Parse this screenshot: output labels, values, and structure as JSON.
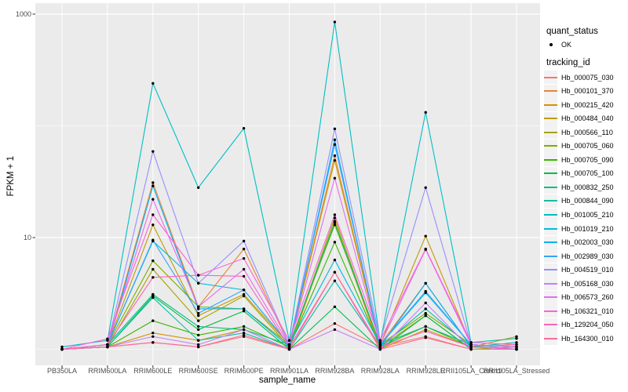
{
  "figure": {
    "background": "#FFFFFF",
    "panel_background": "#EBEBEB",
    "grid_color": "#FFFFFF",
    "point_color": "#000000",
    "axis_text_color": "#4D4D4D",
    "tick_mark_color": "#333333",
    "legend_key_background": "#F2F2F2"
  },
  "chart_data": {
    "type": "line",
    "title": "",
    "xlabel": "sample_name",
    "ylabel": "FPKM + 1",
    "y_scale": "log10",
    "ylim": [
      0.72,
      1230
    ],
    "grid": true,
    "legend_position": "right",
    "y_axis_ticks": [
      {
        "value": 10,
        "label": "10"
      },
      {
        "value": 1000,
        "label": "1000"
      }
    ],
    "y_minor_gridlines": [
      1,
      100
    ],
    "categories": [
      "PB350LA",
      "RRIM600LA",
      "RRIM600LE",
      "RRIM600SE",
      "RRIM600PE",
      "RRIM901LA",
      "RRIM928BA",
      "RRIM928LA",
      "RRIM928LE",
      "RRII105LA_Control",
      "RRII105LA_Stressed"
    ],
    "point_shape": "filled-circle",
    "series": [
      {
        "name": "Hb_000075_030",
        "color": "#F8766D",
        "values": [
          1.0,
          1.05,
          1.15,
          1.05,
          1.3,
          1.0,
          1.7,
          1.05,
          1.3,
          1.0,
          1.0
        ]
      },
      {
        "name": "Hb_000101_370",
        "color": "#EA8331",
        "values": [
          1.0,
          1.1,
          31,
          2.4,
          7.9,
          1.1,
          54,
          1.1,
          3.9,
          1.05,
          1.1
        ]
      },
      {
        "name": "Hb_000215_420",
        "color": "#D89000",
        "values": [
          1.0,
          1.05,
          1.4,
          1.2,
          1.5,
          1.0,
          14,
          1.0,
          1.5,
          1.05,
          1.3
        ]
      },
      {
        "name": "Hb_000484_040",
        "color": "#C09B00",
        "values": [
          1.0,
          1.1,
          13,
          2.0,
          3.1,
          1.1,
          49,
          1.1,
          10.3,
          1.1,
          1.05
        ]
      },
      {
        "name": "Hb_000566_110",
        "color": "#A3A500",
        "values": [
          1.0,
          1.05,
          5.2,
          1.8,
          3.0,
          1.05,
          15,
          1.05,
          2.0,
          1.0,
          1.05
        ]
      },
      {
        "name": "Hb_000705_060",
        "color": "#7CAE00",
        "values": [
          1.0,
          1.1,
          6.2,
          2.4,
          2.3,
          1.1,
          13,
          1.1,
          2.1,
          1.1,
          1.0
        ]
      },
      {
        "name": "Hb_000705_090",
        "color": "#39B600",
        "values": [
          1.0,
          1.05,
          1.8,
          1.34,
          1.6,
          1.05,
          9.1,
          1.05,
          1.6,
          1.05,
          1.0
        ]
      },
      {
        "name": "Hb_000705_100",
        "color": "#00BB4E",
        "values": [
          1.0,
          1.05,
          3.0,
          1.5,
          2.2,
          1.0,
          2.4,
          1.0,
          2.0,
          1.0,
          1.0
        ]
      },
      {
        "name": "Hb_000832_250",
        "color": "#00BF7D",
        "values": [
          1.0,
          1.1,
          3.1,
          1.6,
          1.5,
          1.1,
          13.6,
          1.1,
          1.6,
          1.1,
          1.05
        ]
      },
      {
        "name": "Hb_000844_090",
        "color": "#00C1A3",
        "values": [
          1.0,
          1.05,
          2.9,
          1.2,
          1.4,
          1.0,
          4.1,
          1.05,
          2.3,
          1.05,
          1.15
        ]
      },
      {
        "name": "Hb_001005_210",
        "color": "#00BFC4",
        "values": [
          1.05,
          1.2,
          240,
          28,
          95,
          1.2,
          850,
          1.15,
          132,
          1.15,
          1.25
        ]
      },
      {
        "name": "Hb_001019_210",
        "color": "#00BAE0",
        "values": [
          1.0,
          1.1,
          9.3,
          3.9,
          3.4,
          1.1,
          6.3,
          1.1,
          3.2,
          1.1,
          1.05
        ]
      },
      {
        "name": "Hb_002003_030",
        "color": "#00B0F6",
        "values": [
          1.0,
          1.05,
          29,
          2.3,
          2.3,
          1.05,
          75,
          1.05,
          3.9,
          1.05,
          1.0
        ]
      },
      {
        "name": "Hb_002989_030",
        "color": "#35A2FF",
        "values": [
          1.0,
          1.1,
          9.5,
          2.1,
          3.4,
          1.1,
          68,
          1.1,
          3.3,
          1.1,
          1.05
        ]
      },
      {
        "name": "Hb_004519_010",
        "color": "#9590FF",
        "values": [
          1.0,
          1.1,
          59,
          3.9,
          9.3,
          1.1,
          94,
          1.2,
          28,
          1.1,
          1.0
        ]
      },
      {
        "name": "Hb_005168_030",
        "color": "#C77CFF",
        "values": [
          1.0,
          1.05,
          1.3,
          1.1,
          1.5,
          1.0,
          1.5,
          1.0,
          2.6,
          1.0,
          1.0
        ]
      },
      {
        "name": "Hb_006573_260",
        "color": "#E76BF3",
        "values": [
          1.0,
          1.1,
          22,
          2.4,
          5.2,
          1.1,
          34,
          1.1,
          7.8,
          1.1,
          1.05
        ]
      },
      {
        "name": "Hb_106321_010",
        "color": "#FA62DB",
        "values": [
          1.0,
          1.24,
          16,
          4.6,
          6.5,
          1.2,
          16,
          1.2,
          7.9,
          1.15,
          1.1
        ]
      },
      {
        "name": "Hb_129204_050",
        "color": "#FF62BC",
        "values": [
          1.0,
          1.1,
          4.4,
          4.6,
          4.5,
          1.05,
          4.9,
          1.05,
          1.45,
          1.05,
          1.0
        ]
      },
      {
        "name": "Hb_164300_010",
        "color": "#FF6A98",
        "values": [
          1.0,
          1.05,
          1.15,
          1.05,
          1.34,
          1.0,
          4.9,
          1.0,
          1.27,
          1.0,
          1.0
        ]
      }
    ]
  },
  "legend": {
    "quant_status_title": "quant_status",
    "ok_label": "OK",
    "tracking_id_title": "tracking_id"
  }
}
